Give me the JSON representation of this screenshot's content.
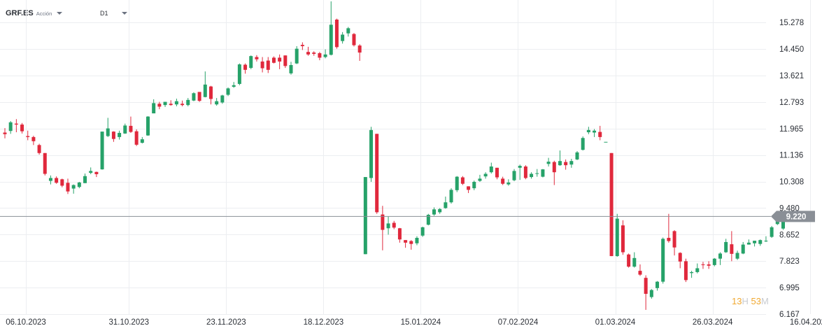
{
  "header": {
    "symbol": "GRF.ES",
    "asset_type": "Acción",
    "timeframe": "D1"
  },
  "countdown": {
    "hours": "13",
    "hours_unit": "H",
    "minutes": "53",
    "minutes_unit": "M"
  },
  "colors": {
    "up": "#26a269",
    "down": "#e0283c",
    "grid": "#eceef1",
    "price_line": "#8a8f96",
    "price_label_bg": "#8a8f96"
  },
  "chart_data": {
    "type": "candlestick",
    "symbol": "GRF.ES",
    "timeframe": "D1",
    "current_price": 9.22,
    "current_price_label": "9.220",
    "ylim": [
      6.167,
      15.72
    ],
    "grid": true,
    "y_ticks": [
      "15.278",
      "14.450",
      "13.621",
      "12.793",
      "11.965",
      "11.136",
      "10.308",
      "9.480",
      "8.652",
      "7.823",
      "6.995",
      "6.167"
    ],
    "x_ticks": [
      "06.10.2023",
      "31.10.2023",
      "23.11.2023",
      "18.12.2023",
      "15.01.2024",
      "07.02.2024",
      "01.03.2024",
      "26.03.2024",
      "16.04.2024"
    ],
    "x_tick_index": [
      0,
      18,
      35,
      52,
      69,
      86,
      103,
      120,
      137
    ],
    "total_slots": 143,
    "candles": [
      [
        11.84,
        11.79,
        11.98,
        11.66
      ],
      [
        11.89,
        12.16,
        12.2,
        11.8
      ],
      [
        12.12,
        12.09,
        12.26,
        11.85
      ],
      [
        12.09,
        11.88,
        12.14,
        11.81
      ],
      [
        11.73,
        11.7,
        11.9,
        11.6
      ],
      [
        11.7,
        11.57,
        11.74,
        11.45
      ],
      [
        11.45,
        11.2,
        11.49,
        11.15
      ],
      [
        11.2,
        10.55,
        11.2,
        10.5
      ],
      [
        10.33,
        10.42,
        10.5,
        10.22
      ],
      [
        10.42,
        10.27,
        10.47,
        10.24
      ],
      [
        10.38,
        10.18,
        10.4,
        10.13
      ],
      [
        10.27,
        10.0,
        10.4,
        9.92
      ],
      [
        10.09,
        10.2,
        10.22,
        9.93
      ],
      [
        10.14,
        10.28,
        10.3,
        10.1
      ],
      [
        10.26,
        10.48,
        10.56,
        10.26
      ],
      [
        10.58,
        10.64,
        10.75,
        10.54
      ],
      [
        10.61,
        10.54,
        10.62,
        10.45
      ],
      [
        10.69,
        11.87,
        11.87,
        10.68
      ],
      [
        11.73,
        11.97,
        12.3,
        11.7
      ],
      [
        11.87,
        11.64,
        11.88,
        11.55
      ],
      [
        11.7,
        11.83,
        11.9,
        11.62
      ],
      [
        11.81,
        12.06,
        12.12,
        11.8
      ],
      [
        12.05,
        11.86,
        12.34,
        11.83
      ],
      [
        11.88,
        11.46,
        11.94,
        11.42
      ],
      [
        11.52,
        11.63,
        11.7,
        11.5
      ],
      [
        11.75,
        12.34,
        12.35,
        11.74
      ],
      [
        12.44,
        12.76,
        12.88,
        12.44
      ],
      [
        12.74,
        12.65,
        12.8,
        12.57
      ],
      [
        12.7,
        12.8,
        12.8,
        12.64
      ],
      [
        12.74,
        12.7,
        12.85,
        12.68
      ],
      [
        12.72,
        12.82,
        12.9,
        12.66
      ],
      [
        12.74,
        12.7,
        12.84,
        12.66
      ],
      [
        12.7,
        12.86,
        12.92,
        12.66
      ],
      [
        12.84,
        13.07,
        13.1,
        12.82
      ],
      [
        13.11,
        12.83,
        13.1,
        12.8
      ],
      [
        12.95,
        13.34,
        13.75,
        12.94
      ],
      [
        13.28,
        12.89,
        13.3,
        12.72
      ],
      [
        12.72,
        12.82,
        12.92,
        12.68
      ],
      [
        12.78,
        13.0,
        13.02,
        12.74
      ],
      [
        13.02,
        13.22,
        13.25,
        12.98
      ],
      [
        13.27,
        13.32,
        13.42,
        13.24
      ],
      [
        13.36,
        13.97,
        14.0,
        13.32
      ],
      [
        13.96,
        13.8,
        14.0,
        13.68
      ],
      [
        13.86,
        14.23,
        14.25,
        13.82
      ],
      [
        14.2,
        14.13,
        14.26,
        14.06
      ],
      [
        14.06,
        13.85,
        14.2,
        13.72
      ],
      [
        14.09,
        13.8,
        14.2,
        13.7
      ],
      [
        14.18,
        14.02,
        14.22,
        14.0
      ],
      [
        14.18,
        14.06,
        14.28,
        13.82
      ],
      [
        14.25,
        13.92,
        14.25,
        13.86
      ],
      [
        13.69,
        13.95,
        14.05,
        13.65
      ],
      [
        14.0,
        14.46,
        14.54,
        13.98
      ],
      [
        14.58,
        14.54,
        14.66,
        14.42
      ],
      [
        14.36,
        14.28,
        14.52,
        14.24
      ],
      [
        14.34,
        14.3,
        14.38,
        14.24
      ],
      [
        14.32,
        14.18,
        14.36,
        14.1
      ],
      [
        14.2,
        14.28,
        14.44,
        14.16
      ],
      [
        14.27,
        15.21,
        15.94,
        14.25
      ],
      [
        15.37,
        14.51,
        15.4,
        14.46
      ],
      [
        14.7,
        14.9,
        14.98,
        14.62
      ],
      [
        14.94,
        15.1,
        15.14,
        14.84
      ],
      [
        14.92,
        14.57,
        14.95,
        14.53
      ],
      [
        14.56,
        14.34,
        14.6,
        14.08
      ],
      [
        8.04,
        10.45,
        10.45,
        8.04
      ],
      [
        10.42,
        11.92,
        12.02,
        10.3
      ],
      [
        11.8,
        9.35,
        11.8,
        9.3
      ],
      [
        9.28,
        8.8,
        9.55,
        8.16
      ],
      [
        8.85,
        9.0,
        9.22,
        8.65
      ],
      [
        9.02,
        8.87,
        9.08,
        8.82
      ],
      [
        8.85,
        8.5,
        8.86,
        8.4
      ],
      [
        8.48,
        8.4,
        8.48,
        8.24
      ],
      [
        8.45,
        8.36,
        8.48,
        8.18
      ],
      [
        8.38,
        8.55,
        8.6,
        8.32
      ],
      [
        8.62,
        8.88,
        8.9,
        8.58
      ],
      [
        8.96,
        9.27,
        9.3,
        8.94
      ],
      [
        9.28,
        9.44,
        9.5,
        9.24
      ],
      [
        9.35,
        9.45,
        9.48,
        9.3
      ],
      [
        9.48,
        9.66,
        9.84,
        9.46
      ],
      [
        9.66,
        10.05,
        10.1,
        9.62
      ],
      [
        10.04,
        10.46,
        10.48,
        9.98
      ],
      [
        10.44,
        10.24,
        10.48,
        10.2
      ],
      [
        10.16,
        10.05,
        10.16,
        9.95
      ],
      [
        10.1,
        10.3,
        10.34,
        10.04
      ],
      [
        10.33,
        10.4,
        10.52,
        10.3
      ],
      [
        10.47,
        10.55,
        10.6,
        10.4
      ],
      [
        10.6,
        10.78,
        10.9,
        10.56
      ],
      [
        10.74,
        10.44,
        10.74,
        10.38
      ],
      [
        10.4,
        10.24,
        10.46,
        10.2
      ],
      [
        10.22,
        10.28,
        10.38,
        10.18
      ],
      [
        10.35,
        10.64,
        10.7,
        10.32
      ],
      [
        10.74,
        10.8,
        10.84,
        10.36
      ],
      [
        10.78,
        10.42,
        10.82,
        10.38
      ],
      [
        10.45,
        10.55,
        10.6,
        10.4
      ],
      [
        10.56,
        10.57,
        10.7,
        10.46
      ],
      [
        10.46,
        10.69,
        10.7,
        10.44
      ],
      [
        10.86,
        10.93,
        11.05,
        10.78
      ],
      [
        10.92,
        10.6,
        10.96,
        10.2
      ],
      [
        10.82,
        10.95,
        11.28,
        10.8
      ],
      [
        10.92,
        10.82,
        11.0,
        10.68
      ],
      [
        10.84,
        10.95,
        11.02,
        10.74
      ],
      [
        11.0,
        11.22,
        11.26,
        10.98
      ],
      [
        11.3,
        11.67,
        11.72,
        11.28
      ],
      [
        11.85,
        11.92,
        12.02,
        11.79
      ],
      [
        11.84,
        11.9,
        11.95,
        11.7
      ],
      [
        11.86,
        11.7,
        12.05,
        11.6
      ],
      [
        11.55,
        11.55,
        11.55,
        11.55
      ],
      [
        11.2,
        7.98,
        11.2,
        7.98
      ],
      [
        7.98,
        9.15,
        9.3,
        7.96
      ],
      [
        8.94,
        8.1,
        9.1,
        8.02
      ],
      [
        8.03,
        7.65,
        8.06,
        7.62
      ],
      [
        7.65,
        7.92,
        8.1,
        7.62
      ],
      [
        7.52,
        7.4,
        7.72,
        7.36
      ],
      [
        7.3,
        6.8,
        7.38,
        6.3
      ],
      [
        6.7,
        6.92,
        6.95,
        6.65
      ],
      [
        6.98,
        7.18,
        7.2,
        6.9
      ],
      [
        7.18,
        8.52,
        8.56,
        7.12
      ],
      [
        8.55,
        8.45,
        9.3,
        8.4
      ],
      [
        8.76,
        8.25,
        8.79,
        8.0
      ],
      [
        8.08,
        7.81,
        8.1,
        7.6
      ],
      [
        7.82,
        7.23,
        7.9,
        7.17
      ],
      [
        7.45,
        7.48,
        7.52,
        7.3
      ],
      [
        7.48,
        7.6,
        7.75,
        7.44
      ],
      [
        7.72,
        7.7,
        7.8,
        7.58
      ],
      [
        7.72,
        7.68,
        7.82,
        7.58
      ],
      [
        7.7,
        7.9,
        7.92,
        7.66
      ],
      [
        7.9,
        8.06,
        8.1,
        7.7
      ],
      [
        8.1,
        8.42,
        8.52,
        8.08
      ],
      [
        8.35,
        8.05,
        8.76,
        7.82
      ],
      [
        7.9,
        8.08,
        8.15,
        7.86
      ],
      [
        8.06,
        8.34,
        8.42,
        8.04
      ],
      [
        8.34,
        8.4,
        8.5,
        8.34
      ],
      [
        8.38,
        8.46,
        8.46,
        8.28
      ],
      [
        8.36,
        8.48,
        8.5,
        8.3
      ],
      [
        8.46,
        8.46,
        8.6,
        8.42
      ],
      [
        8.58,
        8.88,
        8.92,
        8.55
      ],
      [
        8.98,
        9.13,
        9.22,
        8.95
      ],
      [
        8.84,
        9.22,
        9.25,
        8.8
      ]
    ]
  }
}
